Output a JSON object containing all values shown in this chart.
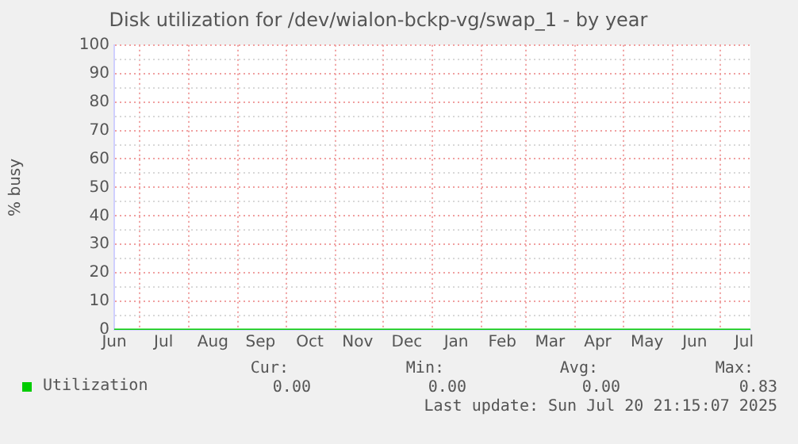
{
  "chart_data": {
    "type": "line",
    "title": "Disk utilization for /dev/wialon-bckp-vg/swap_1 - by year",
    "ylabel": "% busy",
    "x": [
      "2024-06-15",
      "2024-07-01",
      "2024-08-01",
      "2024-09-01",
      "2024-10-01",
      "2024-11-01",
      "2024-12-01",
      "2025-01-01",
      "2025-02-01",
      "2025-03-01",
      "2025-04-01",
      "2025-05-01",
      "2025-06-01",
      "2025-07-01",
      "2025-07-20"
    ],
    "series": [
      {
        "name": "Utilization",
        "color": "#00cc00",
        "values": [
          0,
          0,
          0,
          0,
          0,
          0,
          0,
          0,
          0,
          0,
          0,
          0,
          0,
          0,
          0
        ]
      }
    ],
    "xlim": [
      "2024-06-15",
      "2025-07-20"
    ],
    "xticks": [
      {
        "value": "2024-06-15",
        "label": "Jun"
      },
      {
        "value": "2024-07-16",
        "label": "Jul"
      },
      {
        "value": "2024-08-16",
        "label": "Aug"
      },
      {
        "value": "2024-09-15",
        "label": "Sep"
      },
      {
        "value": "2024-10-16",
        "label": "Oct"
      },
      {
        "value": "2024-11-15",
        "label": "Nov"
      },
      {
        "value": "2024-12-16",
        "label": "Dec"
      },
      {
        "value": "2025-01-16",
        "label": "Jan"
      },
      {
        "value": "2025-02-14",
        "label": "Feb"
      },
      {
        "value": "2025-03-16",
        "label": "Mar"
      },
      {
        "value": "2025-04-15",
        "label": "Apr"
      },
      {
        "value": "2025-05-16",
        "label": "May"
      },
      {
        "value": "2025-06-15",
        "label": "Jun"
      },
      {
        "value": "2025-07-16",
        "label": "Jul"
      },
      {
        "value": "2024-07-01",
        "label": null
      },
      {
        "value": "2024-08-01",
        "label": null
      },
      {
        "value": "2024-09-01",
        "label": null
      },
      {
        "value": "2024-10-01",
        "label": null
      },
      {
        "value": "2024-11-01",
        "label": null
      },
      {
        "value": "2024-12-01",
        "label": null
      },
      {
        "value": "2025-01-01",
        "label": null
      },
      {
        "value": "2025-02-01",
        "label": null
      },
      {
        "value": "2025-03-01",
        "label": null
      },
      {
        "value": "2025-04-01",
        "label": null
      },
      {
        "value": "2025-05-01",
        "label": null
      },
      {
        "value": "2025-06-01",
        "label": null
      },
      {
        "value": "2025-07-01",
        "label": null
      }
    ],
    "ylim": [
      0,
      100
    ],
    "yticks": [
      0,
      10,
      20,
      30,
      40,
      50,
      60,
      70,
      80,
      90,
      100,
      {
        "value": 5,
        "label": null
      },
      {
        "value": 15,
        "label": null
      },
      {
        "value": 25,
        "label": null
      },
      {
        "value": 35,
        "label": null
      },
      {
        "value": 45,
        "label": null
      },
      {
        "value": 55,
        "label": null
      },
      {
        "value": 65,
        "label": null
      },
      {
        "value": 75,
        "label": null
      },
      {
        "value": 85,
        "label": null
      },
      {
        "value": 95,
        "label": null
      }
    ],
    "grid": true,
    "legend": "bottom left",
    "marker": "none",
    "line_style": "solid",
    "annotations": [
      "Cur:",
      "Min:",
      "Avg:",
      "Max:",
      "0.00",
      "0.00",
      "0.00",
      "0.83",
      "Last update: Sun Jul 20 21:15:07 2025"
    ]
  }
}
